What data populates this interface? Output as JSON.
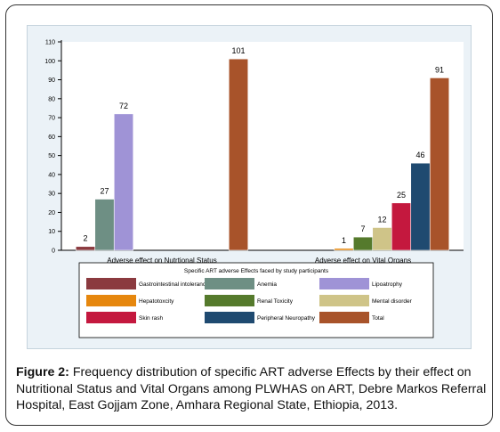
{
  "caption": {
    "label": "Figure 2:",
    "text": "Frequency distribution of specific ART adverse Effects by their effect on Nutritional Status and Vital Organs among PLWHAS on ART, Debre Markos Referral Hospital, East   Gojjam Zone, Amhara Regional State, Ethiopia, 2013."
  },
  "chart_data": {
    "type": "bar",
    "title": "",
    "xlabel": "",
    "ylabel": "",
    "ylim": [
      0,
      110
    ],
    "yticks": [
      0,
      10,
      20,
      30,
      40,
      50,
      60,
      70,
      80,
      90,
      100,
      110
    ],
    "grid": false,
    "categories": [
      "Adverse effect on Nutrtional Status",
      "Adverse effect on Vital Organs"
    ],
    "legend": {
      "title": "Specific ART adverse Effects faced by study participants",
      "placement": "bottom",
      "columns": 3
    },
    "series": [
      {
        "name": "Gastrointestinal intolerance",
        "color": "#8b3a3f",
        "values": [
          2,
          null
        ]
      },
      {
        "name": "Anemia",
        "color": "#6e8f84",
        "values": [
          27,
          null
        ]
      },
      {
        "name": "Lipoatrophy",
        "color": "#9f93d6",
        "values": [
          72,
          null
        ]
      },
      {
        "name": "Hepatotoxcity",
        "color": "#e6870e",
        "values": [
          null,
          1
        ]
      },
      {
        "name": "Renal Toxicity",
        "color": "#557a2c",
        "values": [
          null,
          7
        ]
      },
      {
        "name": "Mental disorder",
        "color": "#cfc488",
        "values": [
          null,
          12
        ]
      },
      {
        "name": "Skin rash",
        "color": "#c4183e",
        "values": [
          null,
          25
        ]
      },
      {
        "name": "Peripheral Neuropathy",
        "color": "#1f4a70",
        "values": [
          null,
          46
        ]
      },
      {
        "name": "Total",
        "color": "#a8532a",
        "values": [
          101,
          91
        ]
      }
    ]
  }
}
